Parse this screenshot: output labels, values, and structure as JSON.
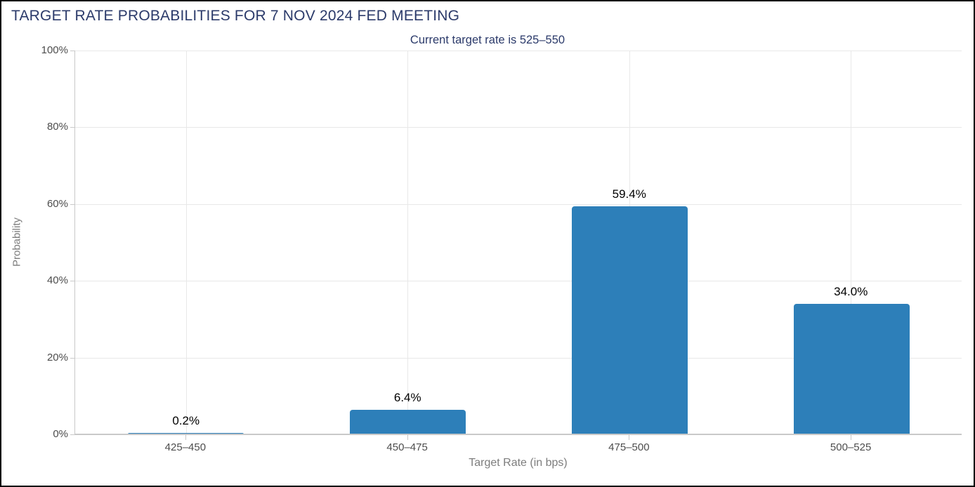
{
  "chart_data": {
    "type": "bar",
    "title": "TARGET RATE PROBABILITIES FOR 7 NOV 2024 FED MEETING",
    "subtitle": "Current target rate is 525–550",
    "categories": [
      "425–450",
      "450–475",
      "475–500",
      "500–525"
    ],
    "values": [
      0.2,
      6.4,
      59.4,
      34.0
    ],
    "data_labels": [
      "0.2%",
      "6.4%",
      "59.4%",
      "34.0%"
    ],
    "xlabel": "Target Rate (in bps)",
    "ylabel": "Probability",
    "ylim": [
      0,
      100
    ],
    "yticks": [
      0,
      20,
      40,
      60,
      80,
      100
    ],
    "ytick_labels": [
      "0%",
      "20%",
      "40%",
      "60%",
      "80%",
      "100%"
    ],
    "grid": true,
    "legend": false,
    "bar_color": "#2d7fb9"
  },
  "colors": {
    "title": "#2b3a6a",
    "bar": "#2d7fb9",
    "gridline": "#e8e8e8",
    "axis_line": "#c9c9c9",
    "tick_label": "#4d4d4d",
    "axis_title": "#7d7d7d",
    "data_label": "#000000",
    "border": "#000000",
    "background": "#ffffff"
  }
}
